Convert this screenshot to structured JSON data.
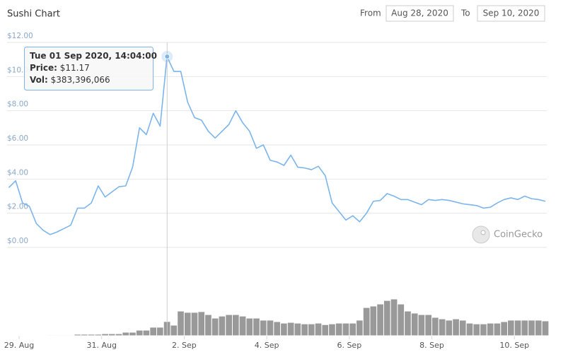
{
  "chart_data": {
    "type": "line",
    "title": "Sushi Chart",
    "range": {
      "from_label": "From",
      "from": "Aug 28, 2020",
      "to_label": "To",
      "to": "Sep 10, 2020"
    },
    "x": [
      "2020-08-28T18:00",
      "2020-08-28T22:00",
      "2020-08-29T02:00",
      "2020-08-29T06:00",
      "2020-08-29T10:00",
      "2020-08-29T14:00",
      "2020-08-29T18:00",
      "2020-08-29T22:00",
      "2020-08-30T02:00",
      "2020-08-30T06:00",
      "2020-08-30T10:00",
      "2020-08-30T14:00",
      "2020-08-30T18:00",
      "2020-08-30T22:00",
      "2020-08-31T02:00",
      "2020-08-31T06:00",
      "2020-08-31T10:00",
      "2020-08-31T14:00",
      "2020-08-31T18:00",
      "2020-08-31T22:00",
      "2020-09-01T02:00",
      "2020-09-01T06:00",
      "2020-09-01T10:00",
      "2020-09-01T14:00",
      "2020-09-01T18:00",
      "2020-09-01T22:00",
      "2020-09-02T02:00",
      "2020-09-02T06:00",
      "2020-09-02T10:00",
      "2020-09-02T14:00",
      "2020-09-02T18:00",
      "2020-09-02T22:00",
      "2020-09-03T02:00",
      "2020-09-03T06:00",
      "2020-09-03T10:00",
      "2020-09-03T14:00",
      "2020-09-03T18:00",
      "2020-09-03T22:00",
      "2020-09-04T02:00",
      "2020-09-04T06:00",
      "2020-09-04T10:00",
      "2020-09-04T14:00",
      "2020-09-04T18:00",
      "2020-09-04T22:00",
      "2020-09-05T02:00",
      "2020-09-05T06:00",
      "2020-09-05T10:00",
      "2020-09-05T14:00",
      "2020-09-05T18:00",
      "2020-09-05T22:00",
      "2020-09-06T02:00",
      "2020-09-06T06:00",
      "2020-09-06T10:00",
      "2020-09-06T14:00",
      "2020-09-06T18:00",
      "2020-09-06T22:00",
      "2020-09-07T02:00",
      "2020-09-07T06:00",
      "2020-09-07T10:00",
      "2020-09-07T14:00",
      "2020-09-07T18:00",
      "2020-09-07T22:00",
      "2020-09-08T02:00",
      "2020-09-08T06:00",
      "2020-09-08T10:00",
      "2020-09-08T14:00",
      "2020-09-08T18:00",
      "2020-09-08T22:00",
      "2020-09-09T02:00",
      "2020-09-09T06:00",
      "2020-09-09T10:00",
      "2020-09-09T14:00",
      "2020-09-09T18:00",
      "2020-09-09T22:00",
      "2020-09-10T02:00",
      "2020-09-10T06:00",
      "2020-09-10T10:00",
      "2020-09-10T14:00",
      "2020-09-10T18:00"
    ],
    "xlim": [
      "2020-08-28T17:00",
      "2020-09-10T18:00"
    ],
    "xticks": [
      {
        "value": "2020-08-29T00:00",
        "label": "29. Aug"
      },
      {
        "value": "2020-08-31T00:00",
        "label": "31. Aug"
      },
      {
        "value": "2020-09-02T00:00",
        "label": "2. Sep"
      },
      {
        "value": "2020-09-04T00:00",
        "label": "4. Sep"
      },
      {
        "value": "2020-09-06T00:00",
        "label": "6. Sep"
      },
      {
        "value": "2020-09-08T00:00",
        "label": "8. Sep"
      },
      {
        "value": "2020-09-10T00:00",
        "label": "10. Sep"
      }
    ],
    "ylim": [
      0,
      12
    ],
    "yticks": [
      {
        "value": 0,
        "label": "$0.00"
      },
      {
        "value": 2,
        "label": "$2.00"
      },
      {
        "value": 4,
        "label": "$4.00"
      },
      {
        "value": 6,
        "label": "$6.00"
      },
      {
        "value": 8,
        "label": "$8.00"
      },
      {
        "value": 10,
        "label": "$10.00"
      },
      {
        "value": 12,
        "label": "$12.00"
      }
    ],
    "grid": true,
    "y2lim": [
      0,
      2000000000
    ],
    "series": [
      {
        "color": "#7cb5ec",
        "values": [
          3.5,
          3.9,
          2.6,
          2.4,
          1.4,
          1.0,
          0.75,
          0.9,
          1.1,
          1.3,
          2.3,
          2.3,
          2.6,
          3.6,
          2.95,
          3.25,
          3.55,
          3.6,
          4.7,
          7.0,
          6.6,
          7.85,
          7.1,
          11.17,
          10.3,
          10.3,
          8.5,
          7.6,
          7.45,
          6.8,
          6.4,
          6.8,
          7.2,
          8.0,
          7.3,
          6.8,
          5.8,
          6.0,
          5.1,
          5.0,
          4.8,
          5.4,
          4.7,
          4.65,
          4.55,
          4.75,
          4.2,
          2.6,
          2.1,
          1.6,
          1.85,
          1.5,
          2.0,
          2.7,
          2.75,
          3.15,
          3.0,
          2.8,
          2.8,
          2.65,
          2.5,
          2.8,
          2.75,
          2.8,
          2.75,
          2.65,
          2.55,
          2.5,
          2.45,
          2.3,
          2.35,
          2.6,
          2.8,
          2.9,
          2.8,
          3.0,
          2.85,
          2.8,
          2.7
        ]
      },
      {
        "type": "bar",
        "axis": "y2",
        "color": "#999999",
        "values": [
          10000000,
          10000000,
          10000000,
          10000000,
          10000000,
          10000000,
          20000000,
          20000000,
          20000000,
          20000000,
          40000000,
          40000000,
          40000000,
          40000000,
          55000000,
          55000000,
          55000000,
          95000000,
          95000000,
          150000000,
          150000000,
          230000000,
          230000000,
          383396066,
          285000000,
          665000000,
          630000000,
          630000000,
          650000000,
          570000000,
          475000000,
          530000000,
          570000000,
          570000000,
          530000000,
          475000000,
          475000000,
          420000000,
          420000000,
          380000000,
          340000000,
          360000000,
          340000000,
          320000000,
          320000000,
          340000000,
          300000000,
          320000000,
          340000000,
          340000000,
          340000000,
          420000000,
          760000000,
          800000000,
          855000000,
          950000000,
          990000000,
          855000000,
          665000000,
          610000000,
          570000000,
          570000000,
          495000000,
          455000000,
          420000000,
          455000000,
          420000000,
          340000000,
          320000000,
          320000000,
          340000000,
          340000000,
          380000000,
          420000000,
          420000000,
          420000000,
          420000000,
          420000000,
          400000000
        ]
      }
    ],
    "tooltip": {
      "x": "2020-09-01T14:04",
      "date": "Tue 01 Sep 2020, 14:04:00",
      "price_label": "Price:",
      "price": "$11.17",
      "vol_label": "Vol:",
      "vol": "$383,396,066"
    },
    "watermark": "CoinGecko"
  }
}
